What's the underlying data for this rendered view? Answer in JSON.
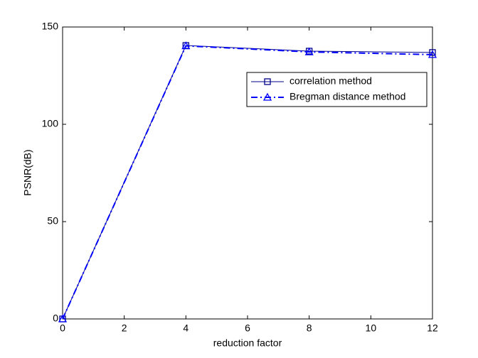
{
  "chart_data": {
    "type": "line",
    "x_label": "reduction factor",
    "y_label": "PSNR(dB)",
    "x": [
      0,
      4,
      8,
      12
    ],
    "series": [
      {
        "name": "correlation method",
        "color": "#00008b",
        "marker": "square",
        "dash": "solid",
        "values": [
          0,
          140.5,
          137.6,
          136.9
        ]
      },
      {
        "name": "Bregman distance method",
        "color": "#0000ff",
        "marker": "triangle",
        "dash": "dashdot",
        "values": [
          0,
          140.3,
          137.2,
          135.8
        ]
      }
    ],
    "xlim": [
      0,
      12
    ],
    "xticks": [
      0,
      2,
      4,
      6,
      8,
      10,
      12
    ],
    "ylim": [
      0,
      150
    ],
    "yticks": [
      0,
      50,
      100,
      150
    ],
    "grid": false,
    "legend": "upper right"
  }
}
